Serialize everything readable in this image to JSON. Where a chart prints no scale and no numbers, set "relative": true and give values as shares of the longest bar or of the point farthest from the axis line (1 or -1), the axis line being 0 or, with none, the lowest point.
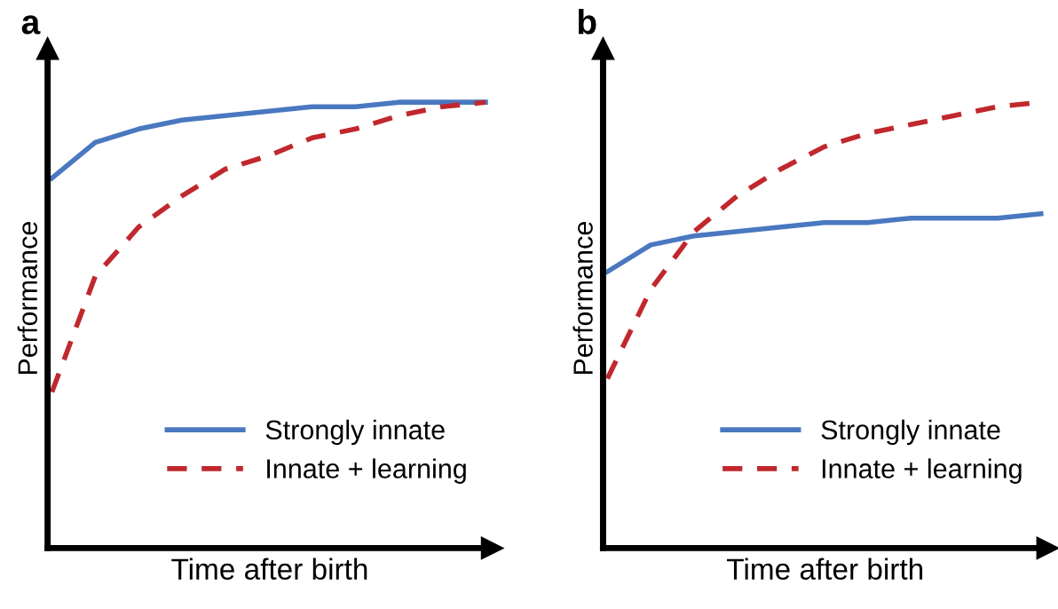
{
  "chart_data": [
    {
      "type": "line",
      "title": "a",
      "xlabel": "Time after birth",
      "ylabel": "Performance",
      "relative": true,
      "legend": "bottom right",
      "tick_labels": false,
      "categories": [
        null,
        null,
        null,
        null,
        null,
        null,
        null,
        null,
        null,
        null,
        null
      ],
      "series": [
        {
          "name": "Strongly innate",
          "color": "#4a78c0",
          "line_style": "solid",
          "values": [
            0.83,
            0.91,
            0.94,
            0.96,
            0.97,
            0.98,
            0.99,
            0.99,
            1.0,
            1.0,
            1.0
          ]
        },
        {
          "name": "Innate + learning",
          "color": "#c0282d",
          "line_style": "dashed",
          "values": [
            0.35,
            0.61,
            0.72,
            0.79,
            0.85,
            0.88,
            0.92,
            0.94,
            0.97,
            0.99,
            1.0
          ]
        }
      ]
    },
    {
      "type": "line",
      "title": "b",
      "xlabel": "Time after birth",
      "ylabel": "Performance",
      "relative": true,
      "legend": "bottom right",
      "tick_labels": false,
      "categories": [
        null,
        null,
        null,
        null,
        null,
        null,
        null,
        null,
        null,
        null,
        null
      ],
      "series": [
        {
          "name": "Strongly innate",
          "color": "#4a78c0",
          "line_style": "solid",
          "values": [
            0.62,
            0.68,
            0.7,
            0.71,
            0.72,
            0.73,
            0.73,
            0.74,
            0.74,
            0.74,
            0.75
          ]
        },
        {
          "name": "Innate + learning",
          "color": "#c0282d",
          "line_style": "dashed",
          "values": [
            0.38,
            0.58,
            0.71,
            0.79,
            0.85,
            0.9,
            0.93,
            0.95,
            0.97,
            0.99,
            1.0
          ]
        }
      ]
    }
  ]
}
